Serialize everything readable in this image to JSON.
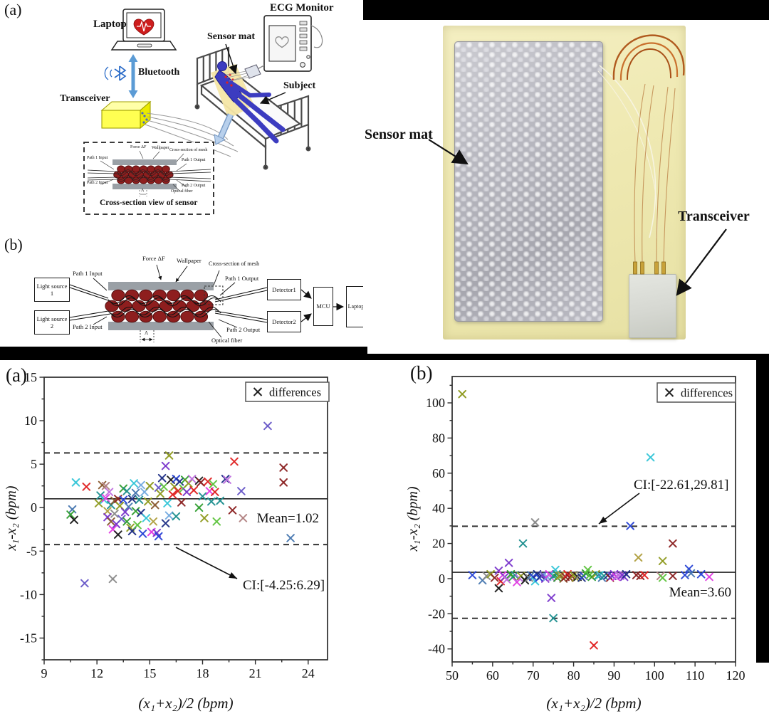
{
  "diagram_a": {
    "label": "(a)",
    "laptop": "Laptop",
    "bluetooth": "Bluetooth",
    "transceiver": "Transceiver",
    "ecg_monitor": "ECG Monitor",
    "sensor_mat": "Sensor mat",
    "subject": "Subject",
    "inset": {
      "title": "Cross-section view of sensor",
      "force": "Force ΔF",
      "wallpaper": "Wallpaper",
      "mesh": "Cross-section of mesh",
      "path1_input": "Path 1 Input",
      "path1_output": "Path 1 Output",
      "path2_input": "Path 2 Input",
      "path2_output": "Path 2 Output",
      "optical_fiber": "Optical fiber",
      "lambda": "Λ"
    }
  },
  "diagram_b": {
    "label": "(b)",
    "light_source_1": "Light source 1",
    "light_source_2": "Light source 2",
    "detector_1": "Detector1",
    "detector_2": "Detector2",
    "mcu": "MCU",
    "laptop": "Laptop",
    "force": "Force ΔF",
    "wallpaper": "Wallpaper",
    "mesh": "Cross-section of mesh",
    "path1_input": "Path 1 Input",
    "path1_output": "Path 1 Output",
    "path2_input": "Path 2 Input",
    "path2_output": "Path 2 Output",
    "optical_fiber": "Optical fiber",
    "lambda": "Λ"
  },
  "photo": {
    "sensor_mat_label": "Sensor mat",
    "transceiver_label": "Transceiver"
  },
  "chart_data": [
    {
      "type": "scatter",
      "panel": "(a)",
      "marker": "x",
      "legend": "differences",
      "xlabel": "(x₁+x₂)/2 (bpm)",
      "ylabel": "x₁-x₂ (bpm)",
      "xlim": [
        9,
        25.1
      ],
      "ylim": [
        -17.5,
        15
      ],
      "xticks": [
        9,
        12,
        15,
        18,
        21,
        24
      ],
      "yticks": [
        -15,
        -10,
        -5,
        0,
        5,
        10,
        15
      ],
      "x_minor_step": 1.5,
      "y_minor_step": 2.5,
      "mean": 1.02,
      "mean_label": "Mean=1.02",
      "loa_upper": 6.29,
      "loa_lower": -4.25,
      "ci_label": "CI:[-4.25:6.29]",
      "palette": [
        "#1a1a1a",
        "#e02020",
        "#2743d6",
        "#2f9e2f",
        "#35c6d8",
        "#e23ae2",
        "#8f9a1f",
        "#8b2020",
        "#7a35cc",
        "#1f2f86",
        "#1f9090",
        "#8a5a30",
        "#8a8a8a",
        "#b08080",
        "#5ec43e",
        "#74aae0",
        "#c070e0",
        "#b0a040",
        "#4878b0",
        "#6858c8"
      ],
      "points": [
        [
          21.7,
          9.4,
          19
        ],
        [
          16.1,
          6.0,
          6
        ],
        [
          19.8,
          5.3,
          1
        ],
        [
          15.9,
          4.8,
          8
        ],
        [
          22.6,
          4.6,
          7
        ],
        [
          22.6,
          2.9,
          7
        ],
        [
          11.3,
          -8.7,
          19
        ],
        [
          12.9,
          -8.2,
          12
        ],
        [
          23.0,
          -3.5,
          18
        ],
        [
          10.8,
          2.9,
          4
        ],
        [
          11.4,
          2.4,
          1
        ],
        [
          10.6,
          -0.2,
          18
        ],
        [
          10.5,
          -0.8,
          3
        ],
        [
          10.7,
          -1.4,
          0
        ],
        [
          12.1,
          0.5,
          6
        ],
        [
          12.2,
          1.4,
          10
        ],
        [
          12.3,
          2.6,
          11
        ],
        [
          12.4,
          0.9,
          4
        ],
        [
          12.5,
          2.5,
          13
        ],
        [
          12.5,
          1.1,
          5
        ],
        [
          12.6,
          -0.4,
          17
        ],
        [
          12.6,
          -1.1,
          8
        ],
        [
          12.7,
          1.8,
          16
        ],
        [
          12.8,
          0.3,
          10
        ],
        [
          12.8,
          -1.6,
          11
        ],
        [
          12.9,
          -2.5,
          5
        ],
        [
          13.0,
          0.8,
          11
        ],
        [
          13.0,
          -0.7,
          12
        ],
        [
          13.1,
          -1.9,
          8
        ],
        [
          13.2,
          1.0,
          7
        ],
        [
          13.2,
          -3.1,
          0
        ],
        [
          13.3,
          0.2,
          6
        ],
        [
          13.4,
          -1.3,
          19
        ],
        [
          13.5,
          2.2,
          3
        ],
        [
          13.5,
          0.9,
          2
        ],
        [
          13.6,
          -0.5,
          8
        ],
        [
          13.7,
          1.9,
          10
        ],
        [
          13.7,
          -1.6,
          3
        ],
        [
          13.8,
          0.1,
          18
        ],
        [
          13.9,
          -2.3,
          6
        ],
        [
          14.0,
          -2.7,
          9
        ],
        [
          14.0,
          1.0,
          9
        ],
        [
          14.1,
          2.8,
          4
        ],
        [
          14.2,
          1.7,
          18
        ],
        [
          14.2,
          -0.4,
          3
        ],
        [
          14.3,
          -2.0,
          14
        ],
        [
          14.4,
          0.9,
          10
        ],
        [
          14.5,
          2.6,
          15
        ],
        [
          14.5,
          -0.6,
          9
        ],
        [
          14.6,
          -3.0,
          2
        ],
        [
          14.7,
          1.8,
          15
        ],
        [
          14.8,
          -1.2,
          4
        ],
        [
          14.9,
          0.7,
          6
        ],
        [
          15.0,
          2.5,
          6
        ],
        [
          15.1,
          -2.8,
          5
        ],
        [
          15.2,
          -1.6,
          17
        ],
        [
          15.3,
          0.3,
          11
        ],
        [
          15.4,
          -2.9,
          8
        ],
        [
          15.5,
          2.3,
          19
        ],
        [
          15.5,
          -3.3,
          2
        ],
        [
          15.6,
          1.6,
          6
        ],
        [
          15.7,
          3.4,
          9
        ],
        [
          15.8,
          2.4,
          14
        ],
        [
          15.9,
          -1.8,
          9
        ],
        [
          16.0,
          0.5,
          4
        ],
        [
          16.1,
          -0.9,
          15
        ],
        [
          16.2,
          3.2,
          0
        ],
        [
          16.3,
          1.5,
          1
        ],
        [
          16.4,
          2.4,
          6
        ],
        [
          16.5,
          3.3,
          2
        ],
        [
          16.5,
          -1.0,
          10
        ],
        [
          16.6,
          1.9,
          1
        ],
        [
          16.7,
          3.0,
          9
        ],
        [
          16.8,
          0.6,
          7
        ],
        [
          16.9,
          2.2,
          14
        ],
        [
          17.0,
          3.2,
          3
        ],
        [
          17.1,
          1.8,
          8
        ],
        [
          17.2,
          2.8,
          6
        ],
        [
          17.4,
          3.3,
          16
        ],
        [
          17.5,
          2.0,
          1
        ],
        [
          17.8,
          3.1,
          0
        ],
        [
          17.8,
          0.0,
          3
        ],
        [
          17.9,
          2.9,
          7
        ],
        [
          18.0,
          1.3,
          10
        ],
        [
          18.1,
          -1.2,
          6
        ],
        [
          18.3,
          3.0,
          1
        ],
        [
          18.4,
          1.9,
          5
        ],
        [
          18.5,
          0.7,
          10
        ],
        [
          18.6,
          2.7,
          14
        ],
        [
          18.7,
          1.8,
          1
        ],
        [
          18.8,
          -1.6,
          14
        ],
        [
          19.0,
          0.8,
          10
        ],
        [
          19.3,
          3.3,
          9
        ],
        [
          19.4,
          3.2,
          16
        ],
        [
          19.7,
          -0.3,
          7
        ],
        [
          20.2,
          1.9,
          19
        ],
        [
          20.3,
          -1.2,
          13
        ]
      ]
    },
    {
      "type": "scatter",
      "panel": "(b)",
      "marker": "x",
      "legend": "differences",
      "xlabel": "(x₁+x₂)/2 (bpm)",
      "ylabel": "x₁-x₂ (bpm)",
      "xlim": [
        50,
        120
      ],
      "ylim": [
        -47.4,
        115
      ],
      "xticks": [
        50,
        60,
        70,
        80,
        90,
        100,
        110,
        120
      ],
      "yticks": [
        -40,
        -20,
        0,
        20,
        40,
        60,
        80,
        100
      ],
      "x_minor_step": 5,
      "y_minor_step": 10,
      "mean": 3.6,
      "mean_label": "Mean=3.60",
      "loa_upper": 29.81,
      "loa_lower": -22.61,
      "ci_label": "CI:[-22.61,29.81]",
      "palette": [
        "#1a1a1a",
        "#e02020",
        "#2743d6",
        "#2f9e2f",
        "#35c6d8",
        "#e23ae2",
        "#8f9a1f",
        "#8b2020",
        "#7a35cc",
        "#1f2f86",
        "#1f9090",
        "#8a5a30",
        "#8a8a8a",
        "#b08080",
        "#5ec43e",
        "#74aae0",
        "#c070e0",
        "#b0a040",
        "#4878b0",
        "#6858c8"
      ],
      "points": [
        [
          52.5,
          105,
          6
        ],
        [
          99,
          69,
          4
        ],
        [
          70.5,
          32,
          12
        ],
        [
          94,
          30,
          2
        ],
        [
          67.5,
          20,
          10
        ],
        [
          104.5,
          20,
          7
        ],
        [
          96,
          12,
          17
        ],
        [
          102,
          10,
          6
        ],
        [
          64,
          9,
          8
        ],
        [
          61.5,
          4.5,
          8
        ],
        [
          61.5,
          -5.5,
          0
        ],
        [
          74.5,
          -11,
          8
        ],
        [
          75,
          -22.5,
          10
        ],
        [
          85,
          -38,
          1
        ],
        [
          55,
          2,
          2
        ],
        [
          57.5,
          -1,
          18
        ],
        [
          58.5,
          1.5,
          12
        ],
        [
          59.5,
          2.5,
          6
        ],
        [
          60.5,
          0.5,
          7
        ],
        [
          62,
          -1.5,
          1
        ],
        [
          62.5,
          2,
          5
        ],
        [
          63,
          1,
          8
        ],
        [
          63.5,
          -0.5,
          16
        ],
        [
          64.5,
          2.5,
          3
        ],
        [
          65,
          1,
          3
        ],
        [
          65.5,
          2,
          10
        ],
        [
          66,
          -2,
          5
        ],
        [
          66.5,
          0.5,
          16
        ],
        [
          67,
          1.5,
          6
        ],
        [
          68,
          -1,
          0
        ],
        [
          68.5,
          1,
          0
        ],
        [
          69,
          0.5,
          12
        ],
        [
          69.5,
          2,
          18
        ],
        [
          70,
          1,
          2
        ],
        [
          70.5,
          -1.5,
          4
        ],
        [
          71,
          2.5,
          9
        ],
        [
          71.5,
          0.5,
          2
        ],
        [
          72,
          1.5,
          9
        ],
        [
          72.5,
          2,
          19
        ],
        [
          73,
          0,
          8
        ],
        [
          73.5,
          1,
          15
        ],
        [
          74,
          2.5,
          5
        ],
        [
          74.5,
          0.5,
          16
        ],
        [
          75,
          1.5,
          10
        ],
        [
          75.5,
          5,
          4
        ],
        [
          75.8,
          2.5,
          10
        ],
        [
          76,
          0.5,
          3
        ],
        [
          76.5,
          1.5,
          6
        ],
        [
          77,
          2,
          17
        ],
        [
          77.5,
          0,
          11
        ],
        [
          78,
          1,
          7
        ],
        [
          78.5,
          2.5,
          1
        ],
        [
          79,
          0.5,
          7
        ],
        [
          79.5,
          1.5,
          7
        ],
        [
          80,
          2,
          6
        ],
        [
          80.5,
          0.5,
          6
        ],
        [
          81,
          1,
          0
        ],
        [
          81.5,
          2,
          12
        ],
        [
          82,
          0.5,
          9
        ],
        [
          82.5,
          1.5,
          2
        ],
        [
          83,
          3,
          3
        ],
        [
          83.5,
          5,
          14
        ],
        [
          84,
          2,
          14
        ],
        [
          84.5,
          1,
          3
        ],
        [
          85.5,
          2.5,
          6
        ],
        [
          86,
          1.5,
          10
        ],
        [
          86.5,
          2,
          4
        ],
        [
          87,
          0.5,
          18
        ],
        [
          87.5,
          1.5,
          10
        ],
        [
          88.5,
          2,
          9
        ],
        [
          89,
          0.5,
          7
        ],
        [
          89.5,
          1.5,
          8
        ],
        [
          90,
          2.5,
          8
        ],
        [
          90.5,
          1,
          5
        ],
        [
          91,
          2,
          16
        ],
        [
          91.5,
          1.5,
          16
        ],
        [
          92,
          2,
          8
        ],
        [
          92.5,
          1,
          8
        ],
        [
          93,
          2.5,
          9
        ],
        [
          95.5,
          2,
          7
        ],
        [
          96.5,
          1.5,
          7
        ],
        [
          97.5,
          2,
          1
        ],
        [
          101.5,
          1.5,
          13
        ],
        [
          102,
          0.5,
          14
        ],
        [
          104.5,
          1.5,
          7
        ],
        [
          107.5,
          2,
          2
        ],
        [
          108.5,
          5.5,
          2
        ],
        [
          109,
          3,
          18
        ],
        [
          111.5,
          2.5,
          2
        ],
        [
          113.5,
          1,
          5
        ]
      ]
    }
  ]
}
